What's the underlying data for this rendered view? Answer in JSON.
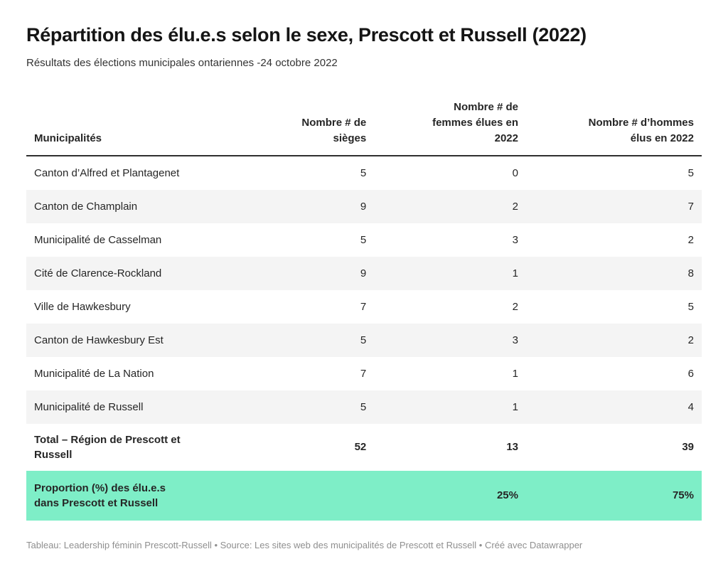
{
  "page": {
    "title": "Répartition des élu.e.s selon le sexe, Prescott et Russell (2022)",
    "subtitle": "Résultats des élections municipales ontariennes -24 octobre 2022",
    "attribution": "Tableau: Leadership féminin Prescott-Russell • Source: Les sites web des municipalités de Prescott et Russell • Créé avec Datawrapper"
  },
  "colors": {
    "highlight_green": "#7eeec7",
    "stripe_gray": "#f4f4f4",
    "header_rule": "#2f2f2f",
    "title_text": "#151515",
    "body_text": "#262626",
    "footer_text": "#8f8f8f"
  },
  "chart_data": {
    "type": "table",
    "title": "Répartition des élu.e.s selon le sexe, Prescott et Russell (2022)",
    "subtitle": "Résultats des élections municipales ontariennes -24 octobre 2022",
    "columns": [
      {
        "label": "Municipalités",
        "align": "left"
      },
      {
        "label": "Nombre # de\nsièges",
        "align": "right"
      },
      {
        "label": "Nombre # de\nfemmes élues en\n2022",
        "align": "right"
      },
      {
        "label": "Nombre # d’hommes\nélus en 2022",
        "align": "right"
      }
    ],
    "rows": [
      {
        "municipality": "Canton d’Alfred et Plantagenet",
        "seats": 5,
        "women": 0,
        "men": 5
      },
      {
        "municipality": "Canton de Champlain",
        "seats": 9,
        "women": 2,
        "men": 7
      },
      {
        "municipality": "Municipalité de Casselman",
        "seats": 5,
        "women": 3,
        "men": 2
      },
      {
        "municipality": "Cité de Clarence-Rockland",
        "seats": 9,
        "women": 1,
        "men": 8
      },
      {
        "municipality": "Ville de Hawkesbury",
        "seats": 7,
        "women": 2,
        "men": 5
      },
      {
        "municipality": "Canton de Hawkesbury Est",
        "seats": 5,
        "women": 3,
        "men": 2
      },
      {
        "municipality": "Municipalité de La Nation",
        "seats": 7,
        "women": 1,
        "men": 6
      },
      {
        "municipality": "Municipalité de Russell",
        "seats": 5,
        "women": 1,
        "men": 4
      }
    ],
    "total_row": {
      "label": "Total – Région de Prescott et\nRussell",
      "seats": 52,
      "women": 13,
      "men": 39
    },
    "proportion_row": {
      "label": "Proportion (%) des élu.e.s\ndans Prescott et Russell",
      "seats": "",
      "women": "25%",
      "men": "75%"
    }
  }
}
